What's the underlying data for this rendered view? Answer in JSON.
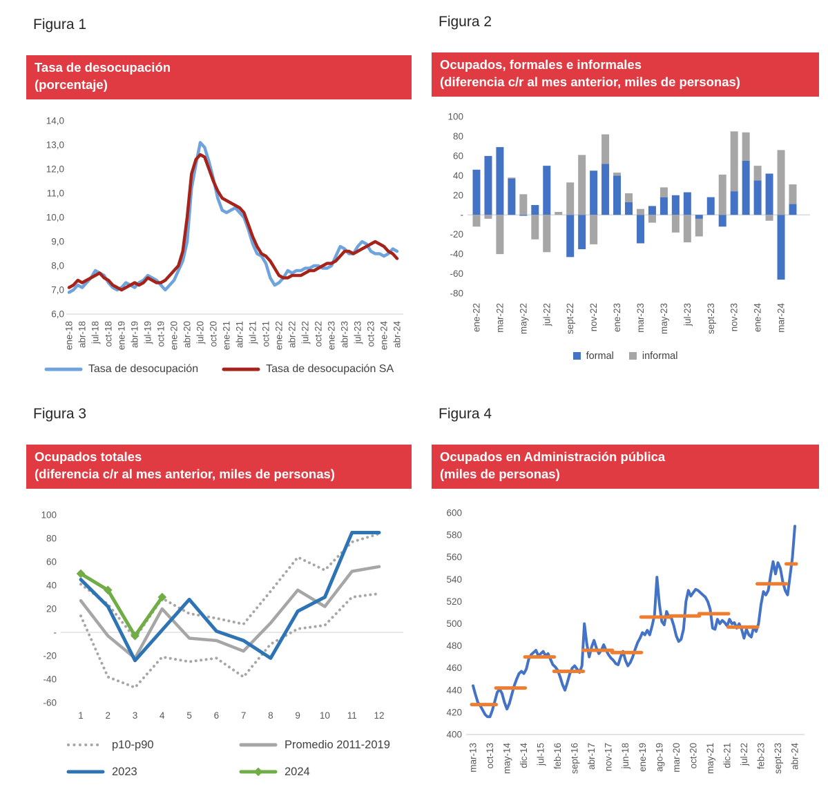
{
  "colors": {
    "banner_red": "#e03b43",
    "axis_text": "#595959",
    "gridline": "#d9d9d9",
    "fig1_blue": "#6fa3dc",
    "fig1_dark_red": "#a5231b",
    "fig2_formal_blue": "#4472c4",
    "fig2_informal_gray": "#a6a6a6",
    "fig3_2023_blue": "#2e74b5",
    "fig3_2024_green": "#70ad47",
    "fig3_gray": "#a6a6a6",
    "fig4_blue": "#4472c4",
    "fig4_orange": "#ed7d31"
  },
  "figures": [
    {
      "heading": "Figura 1",
      "banner_line1": "Tasa de desocupación",
      "banner_line2": "(porcentaje)",
      "chart_data": {
        "type": "line",
        "frequency": "monthly",
        "x_start": "ene-18",
        "x_end": "abr-24",
        "x_tick_every": 3,
        "x_tick_labels": [
          "ene-18",
          "abr-18",
          "jul-18",
          "oct-18",
          "ene-19",
          "abr-19",
          "jul-19",
          "oct-19",
          "ene-20",
          "abr-20",
          "jul-20",
          "oct-20",
          "ene-21",
          "abr-21",
          "jul-21",
          "oct-21",
          "ene-22",
          "abr-22",
          "jul-22",
          "oct-22",
          "ene-23",
          "abr-23",
          "jul-23",
          "oct-23",
          "ene-24",
          "abr-24"
        ],
        "ylim": [
          6,
          14
        ],
        "ytick_values": [
          14,
          13,
          12,
          11,
          10,
          9,
          8,
          7,
          6
        ],
        "ytick_labels": [
          "14,0",
          "13,0",
          "12,0",
          "11,0",
          "10,0",
          "9,0",
          "8,0",
          "7,0",
          "6,0"
        ],
        "grid": "baseline-only",
        "legend_position": "bottom",
        "series": [
          {
            "name": "Tasa de desocupación",
            "color": "#6fa3dc",
            "values": [
              6.9,
              7.0,
              7.2,
              7.1,
              7.3,
              7.5,
              7.8,
              7.7,
              7.6,
              7.3,
              7.1,
              7.0,
              7.1,
              7.3,
              7.2,
              7.1,
              7.3,
              7.4,
              7.6,
              7.5,
              7.4,
              7.2,
              7.0,
              7.2,
              7.4,
              7.8,
              8.2,
              9.0,
              11.2,
              12.2,
              13.1,
              12.9,
              12.3,
              11.6,
              10.8,
              10.3,
              10.2,
              10.3,
              10.4,
              10.2,
              10.0,
              9.5,
              8.9,
              8.5,
              8.4,
              8.1,
              7.5,
              7.2,
              7.3,
              7.5,
              7.8,
              7.7,
              7.8,
              7.8,
              7.9,
              7.9,
              8.0,
              8.0,
              7.9,
              7.9,
              8.0,
              8.4,
              8.8,
              8.7,
              8.5,
              8.5,
              8.8,
              9.0,
              8.9,
              8.6,
              8.5,
              8.5,
              8.4,
              8.5,
              8.7,
              8.6
            ]
          },
          {
            "name": "Tasa de desocupación SA",
            "color": "#a5231b",
            "values": [
              7.1,
              7.2,
              7.4,
              7.3,
              7.4,
              7.5,
              7.6,
              7.7,
              7.5,
              7.4,
              7.2,
              7.1,
              7.0,
              7.1,
              7.2,
              7.3,
              7.2,
              7.3,
              7.5,
              7.4,
              7.3,
              7.3,
              7.4,
              7.6,
              7.8,
              8.0,
              8.6,
              10.0,
              11.8,
              12.4,
              12.6,
              12.5,
              12.0,
              11.5,
              11.1,
              10.8,
              10.7,
              10.6,
              10.5,
              10.4,
              10.2,
              9.7,
              9.2,
              8.8,
              8.5,
              8.4,
              8.2,
              7.9,
              7.6,
              7.5,
              7.5,
              7.6,
              7.6,
              7.6,
              7.7,
              7.8,
              7.8,
              7.9,
              8.0,
              8.1,
              8.1,
              8.2,
              8.4,
              8.6,
              8.6,
              8.5,
              8.6,
              8.7,
              8.8,
              8.9,
              9.0,
              8.9,
              8.8,
              8.6,
              8.5,
              8.3
            ]
          }
        ]
      },
      "legend": [
        {
          "label": "Tasa de desocupación",
          "swatch": "line",
          "color": "#6fa3dc"
        },
        {
          "label": "Tasa de desocupación SA",
          "swatch": "line",
          "color": "#a5231b"
        }
      ]
    },
    {
      "heading": "Figura 2",
      "banner_line1": "Ocupados, formales e informales",
      "banner_line2": "(diferencia c/r al mes anterior, miles de personas)",
      "chart_data": {
        "type": "stacked-bar",
        "frequency": "monthly",
        "categories": [
          "ene-22",
          "feb-22",
          "mar-22",
          "abr-22",
          "may-22",
          "jun-22",
          "jul-22",
          "ago-22",
          "sept-22",
          "oct-22",
          "nov-22",
          "dic-22",
          "ene-23",
          "feb-23",
          "mar-23",
          "abr-23",
          "may-23",
          "jun-23",
          "jul-23",
          "ago-23",
          "sept-23",
          "oct-23",
          "nov-23",
          "dic-23",
          "ene-24",
          "feb-24",
          "mar-24",
          "abr-24"
        ],
        "x_tick_every": 2,
        "x_tick_labels": [
          "ene-22",
          "mar-22",
          "may-22",
          "jul-22",
          "sept-22",
          "nov-22",
          "ene-23",
          "mar-23",
          "may-23",
          "jul-23",
          "sept-23",
          "nov-23",
          "ene-24",
          "mar-24"
        ],
        "ylim": [
          -80,
          100
        ],
        "ytick_values": [
          100,
          80,
          60,
          40,
          20,
          0,
          -20,
          -40,
          -60,
          -80
        ],
        "ytick_labels": [
          "100",
          "80",
          "60",
          "40",
          "20",
          "-",
          "-20",
          "-40",
          "-60",
          "-80"
        ],
        "legend_position": "bottom",
        "series": [
          {
            "name": "formal",
            "color": "#4472c4",
            "values": [
              46,
              60,
              69,
              37,
              -1,
              10,
              50,
              0,
              -43,
              -35,
              45,
              52,
              40,
              13,
              -29,
              9,
              18,
              20,
              23,
              -4,
              18,
              -12,
              24,
              55,
              35,
              42,
              -66,
              11
            ]
          },
          {
            "name": "informal",
            "color": "#a6a6a6",
            "values": [
              -12,
              -4,
              -40,
              1,
              21,
              -25,
              -38,
              3,
              33,
              61,
              -30,
              30,
              3,
              9,
              6,
              -8,
              10,
              -18,
              -28,
              -18,
              0,
              41,
              61,
              29,
              15,
              -6,
              66,
              20
            ]
          }
        ]
      },
      "legend": [
        {
          "label": "formal",
          "swatch": "square",
          "color": "#4472c4"
        },
        {
          "label": "informal",
          "swatch": "square",
          "color": "#a6a6a6"
        }
      ]
    },
    {
      "heading": "Figura 3",
      "banner_line1": "Ocupados totales",
      "banner_line2": "(diferencia c/r al mes anterior, miles de personas)",
      "chart_data": {
        "type": "line",
        "categories": [
          1,
          2,
          3,
          4,
          5,
          6,
          7,
          8,
          9,
          10,
          11,
          12
        ],
        "ylim": [
          -60,
          100
        ],
        "ytick_values": [
          100,
          80,
          60,
          40,
          20,
          0,
          -20,
          -40,
          -60
        ],
        "ytick_labels": [
          "100",
          "80",
          "60",
          "40",
          "20",
          "-",
          "-20",
          "-40",
          "-60"
        ],
        "grid": "zero-line-only",
        "legend_position": "bottom",
        "series": [
          {
            "name": "p10-p90",
            "role": "band-upper",
            "style": "dotted",
            "color": "#a6a6a6",
            "values": [
              41,
              24,
              -5,
              29,
              16,
              12,
              7,
              35,
              64,
              53,
              77,
              84
            ]
          },
          {
            "name": "p10-p90",
            "role": "band-lower",
            "style": "dotted",
            "color": "#a6a6a6",
            "values": [
              14,
              -38,
              -47,
              -21,
              -25,
              -22,
              -38,
              -10,
              3,
              6,
              30,
              33
            ]
          },
          {
            "name": "Promedio 2011-2019",
            "style": "solid",
            "color": "#a6a6a6",
            "values": [
              27,
              -3,
              -22,
              20,
              -5,
              -7,
              -16,
              8,
              36,
              22,
              52,
              56
            ]
          },
          {
            "name": "2023",
            "style": "solid",
            "color": "#2e74b5",
            "values": [
              45,
              22,
              -24,
              2,
              28,
              1,
              -7,
              -22,
              18,
              30,
              85,
              85
            ]
          },
          {
            "name": "2024",
            "style": "solid-diamond",
            "color": "#70ad47",
            "values": [
              50,
              36,
              -3,
              30
            ]
          }
        ]
      },
      "legend": [
        {
          "label": "p10-p90",
          "swatch": "dots",
          "color": "#a6a6a6"
        },
        {
          "label": "Promedio 2011-2019",
          "swatch": "line",
          "color": "#a6a6a6"
        },
        {
          "label": "2023",
          "swatch": "line",
          "color": "#2e74b5"
        },
        {
          "label": "2024",
          "swatch": "line-diamond",
          "color": "#70ad47"
        }
      ]
    },
    {
      "heading": "Figura 4",
      "banner_line1": "Ocupados en Administración pública",
      "banner_line2": "(miles de personas)",
      "chart_data": {
        "type": "line",
        "frequency": "monthly",
        "x_start": "mar-13",
        "x_end": "abr-24",
        "x_tick_every": 7,
        "x_tick_labels": [
          "mar-13",
          "oct-13",
          "may-14",
          "dic-14",
          "jul-15",
          "feb-16",
          "sept-16",
          "abr-17",
          "nov-17",
          "jun-18",
          "ene-19",
          "ago-19",
          "mar-20",
          "oct-20",
          "may-21",
          "dic-21",
          "jul-22",
          "feb-23",
          "sept-23",
          "abr-24"
        ],
        "ylim": [
          400,
          600
        ],
        "ytick_values": [
          600,
          580,
          560,
          540,
          520,
          500,
          480,
          460,
          440,
          420,
          400
        ],
        "ytick_labels": [
          "600",
          "580",
          "560",
          "540",
          "520",
          "500",
          "480",
          "460",
          "440",
          "420",
          "400"
        ],
        "grid": "baseline-only",
        "series": [
          {
            "name": "Ocupados en Administración pública",
            "color": "#4472c4",
            "values": [
              444,
              436,
              429,
              426,
              422,
              418,
              416,
              416,
              422,
              430,
              438,
              441,
              437,
              429,
              423,
              428,
              436,
              444,
              450,
              455,
              457,
              455,
              459,
              468,
              472,
              474,
              476,
              471,
              473,
              475,
              471,
              473,
              468,
              463,
              461,
              458,
              452,
              445,
              440,
              447,
              455,
              460,
              462,
              459,
              456,
              462,
              500,
              482,
              470,
              479,
              485,
              478,
              473,
              476,
              481,
              476,
              472,
              469,
              467,
              464,
              463,
              470,
              475,
              467,
              462,
              465,
              470,
              477,
              483,
              487,
              492,
              490,
              494,
              490,
              498,
              508,
              542,
              518,
              502,
              499,
              511,
              506,
              505,
              498,
              489,
              484,
              486,
              495,
              520,
              530,
              525,
              528,
              531,
              530,
              528,
              526,
              524,
              520,
              513,
              496,
              495,
              504,
              500,
              503,
              501,
              498,
              504,
              500,
              501,
              496,
              500,
              495,
              487,
              495,
              490,
              488,
              497,
              493,
              500,
              517,
              529,
              526,
              530,
              544,
              556,
              545,
              555,
              550,
              538,
              530,
              526,
              543,
              560,
              588
            ]
          }
        ],
        "annual_averages": {
          "color": "#ed7d31",
          "items": [
            {
              "year": "2013",
              "value": 427,
              "start_index": 0,
              "end_index": 9
            },
            {
              "year": "2014",
              "value": 442,
              "start_index": 10,
              "end_index": 21
            },
            {
              "year": "2015",
              "value": 470,
              "start_index": 22,
              "end_index": 33
            },
            {
              "year": "2016",
              "value": 457,
              "start_index": 34,
              "end_index": 45
            },
            {
              "year": "2017",
              "value": 476,
              "start_index": 46,
              "end_index": 57
            },
            {
              "year": "2018",
              "value": 474,
              "start_index": 58,
              "end_index": 69
            },
            {
              "year": "2019",
              "value": 506,
              "start_index": 70,
              "end_index": 81
            },
            {
              "year": "2020",
              "value": 507,
              "start_index": 82,
              "end_index": 93
            },
            {
              "year": "2021",
              "value": 509,
              "start_index": 94,
              "end_index": 105
            },
            {
              "year": "2022",
              "value": 497,
              "start_index": 106,
              "end_index": 117
            },
            {
              "year": "2023",
              "value": 536,
              "start_index": 118,
              "end_index": 129
            },
            {
              "year": "2024",
              "value": 554,
              "start_index": 130,
              "end_index": 133
            }
          ]
        }
      },
      "legend": []
    }
  ]
}
